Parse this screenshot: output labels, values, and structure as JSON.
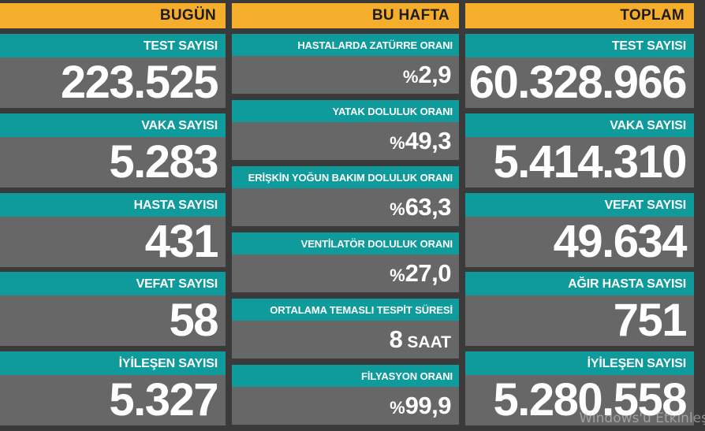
{
  "bugun": {
    "header": "BUGÜN",
    "items": [
      {
        "label": "TEST SAYISI",
        "value": "223.525"
      },
      {
        "label": "VAKA SAYISI",
        "value": "5.283"
      },
      {
        "label": "HASTA SAYISI",
        "value": "431"
      },
      {
        "label": "VEFAT SAYISI",
        "value": "58"
      },
      {
        "label": "İYİLEŞEN SAYISI",
        "value": "5.327"
      }
    ]
  },
  "bu_hafta": {
    "header": "BU HAFTA",
    "items": [
      {
        "label": "HASTALARDA ZATÜRRE ORANI",
        "prefix": "%",
        "value": "2,9"
      },
      {
        "label": "YATAK DOLULUK ORANI",
        "prefix": "%",
        "value": "49,3"
      },
      {
        "label": "ERİŞKİN YOĞUN BAKIM DOLULUK ORANI",
        "prefix": "%",
        "value": "63,3"
      },
      {
        "label": "VENTİLATÖR DOLULUK ORANI",
        "prefix": "%",
        "value": "27,0"
      },
      {
        "label": "ORTALAMA TEMASLI TESPİT SÜRESİ",
        "value": "8",
        "unit": "SAAT"
      },
      {
        "label": "FİLYASYON ORANI",
        "prefix": "%",
        "value": "99,9"
      }
    ]
  },
  "toplam": {
    "header": "TOPLAM",
    "items": [
      {
        "label": "TEST SAYISI",
        "value": "60.328.966"
      },
      {
        "label": "VAKA SAYISI",
        "value": "5.414.310"
      },
      {
        "label": "VEFAT SAYISI",
        "value": "49.634"
      },
      {
        "label": "AĞIR HASTA SAYISI",
        "value": "751"
      },
      {
        "label": "İYİLEŞEN SAYISI",
        "value": "5.280.558"
      }
    ]
  },
  "watermark": "Windows'u Etkinleş",
  "colors": {
    "header_bg": "#f5ad2c",
    "label_bg": "#0f9a9c",
    "value_bg": "#676767",
    "page_bg": "#3a3a3a"
  }
}
